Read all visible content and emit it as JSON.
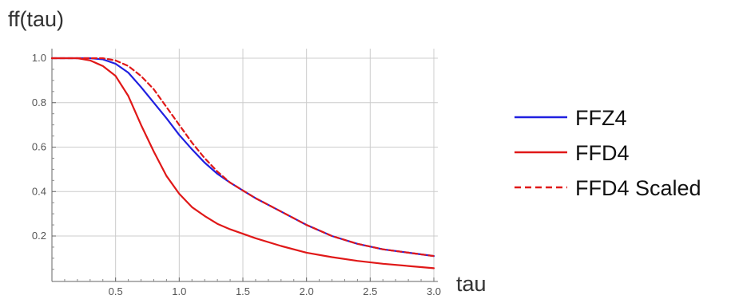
{
  "chart_data": {
    "type": "line",
    "xlabel": "tau",
    "ylabel": "ff(tau)",
    "xlim": [
      0,
      3.0
    ],
    "ylim": [
      -0.06,
      1.04
    ],
    "grid": true,
    "legend_position": "right",
    "x_ticks": [
      "0.5",
      "1.0",
      "1.5",
      "2.0",
      "2.5",
      "3.0"
    ],
    "y_ticks": [
      "0.2",
      "0.4",
      "0.6",
      "0.8",
      "1.0"
    ],
    "series": [
      {
        "name": "FFZ4",
        "color": "#2020e0",
        "dash": "solid",
        "x": [
          0,
          0.1,
          0.2,
          0.3,
          0.4,
          0.5,
          0.6,
          0.7,
          0.8,
          0.9,
          1.0,
          1.1,
          1.2,
          1.3,
          1.4,
          1.5,
          1.6,
          1.8,
          2.0,
          2.2,
          2.4,
          2.6,
          2.8,
          3.0
        ],
        "y": [
          1.0,
          1.0,
          1.0,
          1.0,
          0.995,
          0.975,
          0.935,
          0.87,
          0.8,
          0.73,
          0.655,
          0.59,
          0.53,
          0.48,
          0.44,
          0.405,
          0.37,
          0.31,
          0.25,
          0.2,
          0.165,
          0.14,
          0.125,
          0.11
        ]
      },
      {
        "name": "FFD4",
        "color": "#e01818",
        "dash": "solid",
        "x": [
          0,
          0.1,
          0.2,
          0.3,
          0.4,
          0.5,
          0.6,
          0.7,
          0.8,
          0.9,
          1.0,
          1.1,
          1.2,
          1.3,
          1.4,
          1.5,
          1.6,
          1.8,
          2.0,
          2.2,
          2.4,
          2.6,
          2.8,
          3.0
        ],
        "y": [
          1.0,
          1.0,
          1.0,
          0.99,
          0.965,
          0.92,
          0.83,
          0.7,
          0.58,
          0.47,
          0.39,
          0.33,
          0.29,
          0.255,
          0.23,
          0.21,
          0.19,
          0.155,
          0.125,
          0.105,
          0.088,
          0.075,
          0.065,
          0.055
        ]
      },
      {
        "name": "FFD4 Scaled",
        "color": "#e01818",
        "dash": "dashed",
        "x": [
          0,
          0.1,
          0.2,
          0.3,
          0.4,
          0.5,
          0.6,
          0.7,
          0.8,
          0.9,
          1.0,
          1.1,
          1.2,
          1.3,
          1.4,
          1.5,
          1.6,
          1.8,
          2.0,
          2.2,
          2.4,
          2.6,
          2.8,
          3.0
        ],
        "y": [
          1.0,
          1.0,
          1.0,
          1.0,
          1.0,
          0.99,
          0.965,
          0.92,
          0.86,
          0.78,
          0.7,
          0.62,
          0.55,
          0.49,
          0.44,
          0.405,
          0.37,
          0.31,
          0.25,
          0.2,
          0.165,
          0.14,
          0.125,
          0.11
        ]
      }
    ]
  }
}
